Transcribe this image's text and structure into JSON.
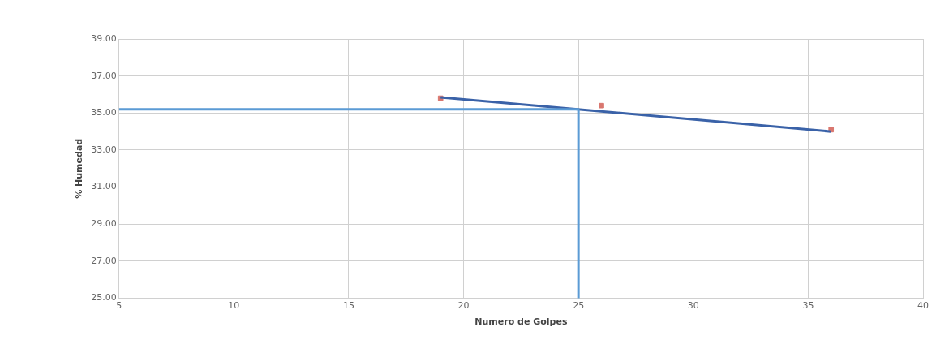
{
  "chart_data": {
    "type": "scatter",
    "xlabel": "Numero de Golpes",
    "ylabel": "% Humedad",
    "xlim": [
      5,
      40
    ],
    "xticks": [
      5,
      10,
      15,
      20,
      25,
      30,
      35,
      40
    ],
    "ylim": [
      25,
      39
    ],
    "yticks": [
      {
        "value": 25,
        "label": "25.00"
      },
      {
        "value": 27,
        "label": "27.00"
      },
      {
        "value": 29,
        "label": "29.00"
      },
      {
        "value": 31,
        "label": "31.00"
      },
      {
        "value": 33,
        "label": "33.00"
      },
      {
        "value": 35,
        "label": "35.00"
      },
      {
        "value": 37,
        "label": "37.00"
      },
      {
        "value": 39,
        "label": "39.00"
      }
    ],
    "grid": true,
    "series": [
      {
        "type": "line",
        "marker": "none",
        "color": "#5b9bd5",
        "x": [
          5,
          25,
          25
        ],
        "values": [
          35.2,
          35.2,
          25
        ]
      },
      {
        "type": "line",
        "marker": "none",
        "color": "#3a62a8",
        "x": [
          19,
          36
        ],
        "values": [
          35.85,
          34.0
        ]
      },
      {
        "marker": "square",
        "color": "#d9776f",
        "x": [
          19,
          26,
          36
        ],
        "values": [
          35.8,
          35.4,
          34.1
        ]
      }
    ]
  }
}
